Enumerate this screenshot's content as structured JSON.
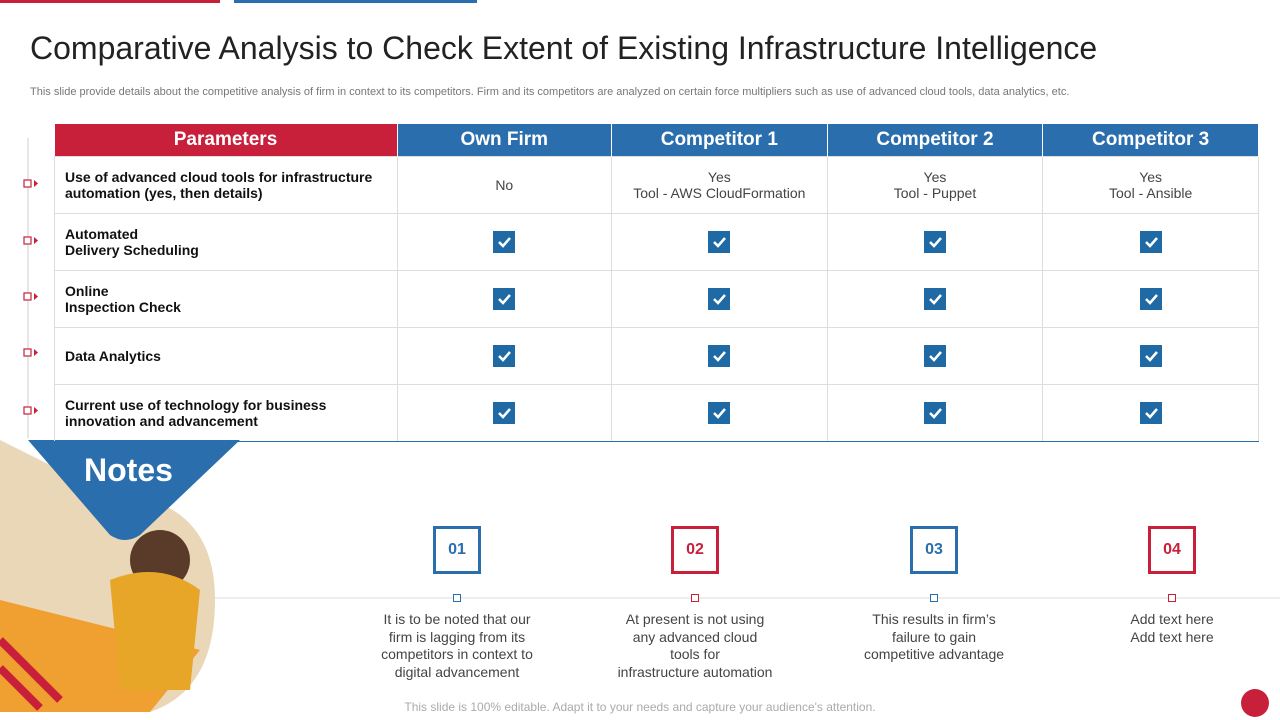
{
  "header": {
    "title": "Comparative Analysis to Check Extent of Existing Infrastructure  Intelligence",
    "subtitle": "This slide provide details about the competitive analysis of firm in context to its competitors. Firm and its competitors are analyzed on certain force multipliers such as use of advanced cloud tools, data analytics, etc."
  },
  "table": {
    "columns": [
      "Parameters",
      "Own Firm",
      "Competitor 1",
      "Competitor 2",
      "Competitor 3"
    ],
    "rows": [
      [
        "Use of advanced cloud tools for infrastructure\nautomation (yes, then details)",
        "No",
        "Yes\nTool - AWS CloudFormation",
        "Yes\nTool - Puppet",
        "Yes\nTool - Ansible"
      ],
      [
        "Automated\nDelivery Scheduling",
        true,
        true,
        true,
        true
      ],
      [
        "Online\nInspection Check",
        true,
        true,
        true,
        true
      ],
      [
        "Data Analytics",
        true,
        true,
        true,
        true
      ],
      [
        "Current use of technology for business\ninnovation and advancement",
        true,
        true,
        true,
        true
      ]
    ]
  },
  "notes": {
    "heading": "Notes",
    "items": [
      {
        "number": "01",
        "text": "It is to be noted that our\nfirm is lagging from its\ncompetitors in context to\ndigital advancement"
      },
      {
        "number": "02",
        "text": "At present is not using\nany advanced cloud\ntools for\ninfrastructure automation"
      },
      {
        "number": "03",
        "text": "This results in firm’s\nfailure to gain\ncompetitive advantage"
      },
      {
        "number": "04",
        "text": "Add text here\nAdd text here"
      }
    ]
  },
  "footer": "This slide is 100% editable. Adapt it to your needs and capture your audience's attention."
}
